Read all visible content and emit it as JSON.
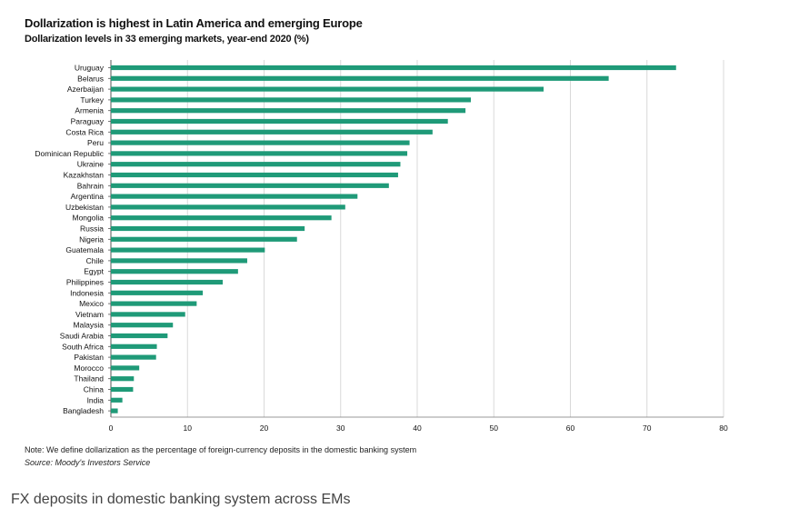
{
  "chart_data": {
    "type": "bar",
    "orientation": "horizontal",
    "title": "Dollarization is highest in Latin America and emerging Europe",
    "subtitle": "Dollarization levels in 33 emerging markets, year-end 2020 (%)",
    "categories": [
      "Uruguay",
      "Belarus",
      "Azerbaijan",
      "Turkey",
      "Armenia",
      "Paraguay",
      "Costa Rica",
      "Peru",
      "Dominican Republic",
      "Ukraine",
      "Kazakhstan",
      "Bahrain",
      "Argentina",
      "Uzbekistan",
      "Mongolia",
      "Russia",
      "Nigeria",
      "Guatemala",
      "Chile",
      "Egypt",
      "Philippines",
      "Indonesia",
      "Mexico",
      "Vietnam",
      "Malaysia",
      "Saudi Arabia",
      "South Africa",
      "Pakistan",
      "Morocco",
      "Thailand",
      "China",
      "India",
      "Bangladesh"
    ],
    "values": [
      73.8,
      65.0,
      56.5,
      47.0,
      46.3,
      44.0,
      42.0,
      39.0,
      38.7,
      37.8,
      37.5,
      36.3,
      32.2,
      30.6,
      28.8,
      25.3,
      24.3,
      20.1,
      17.8,
      16.6,
      14.6,
      12.0,
      11.2,
      9.7,
      8.1,
      7.4,
      6.0,
      5.9,
      3.7,
      3.0,
      2.9,
      1.5,
      0.9
    ],
    "xticks": [
      0,
      10,
      20,
      30,
      40,
      50,
      60,
      70,
      80
    ],
    "xlim": [
      0,
      80
    ],
    "grid": true,
    "bar_color": "#1f9a78",
    "note": "Note: We define dollarization as the percentage of foreign-currency deposits in the domestic banking system",
    "source": "Source: Moody's Investors Service"
  },
  "caption": "FX deposits in domestic banking system across EMs"
}
